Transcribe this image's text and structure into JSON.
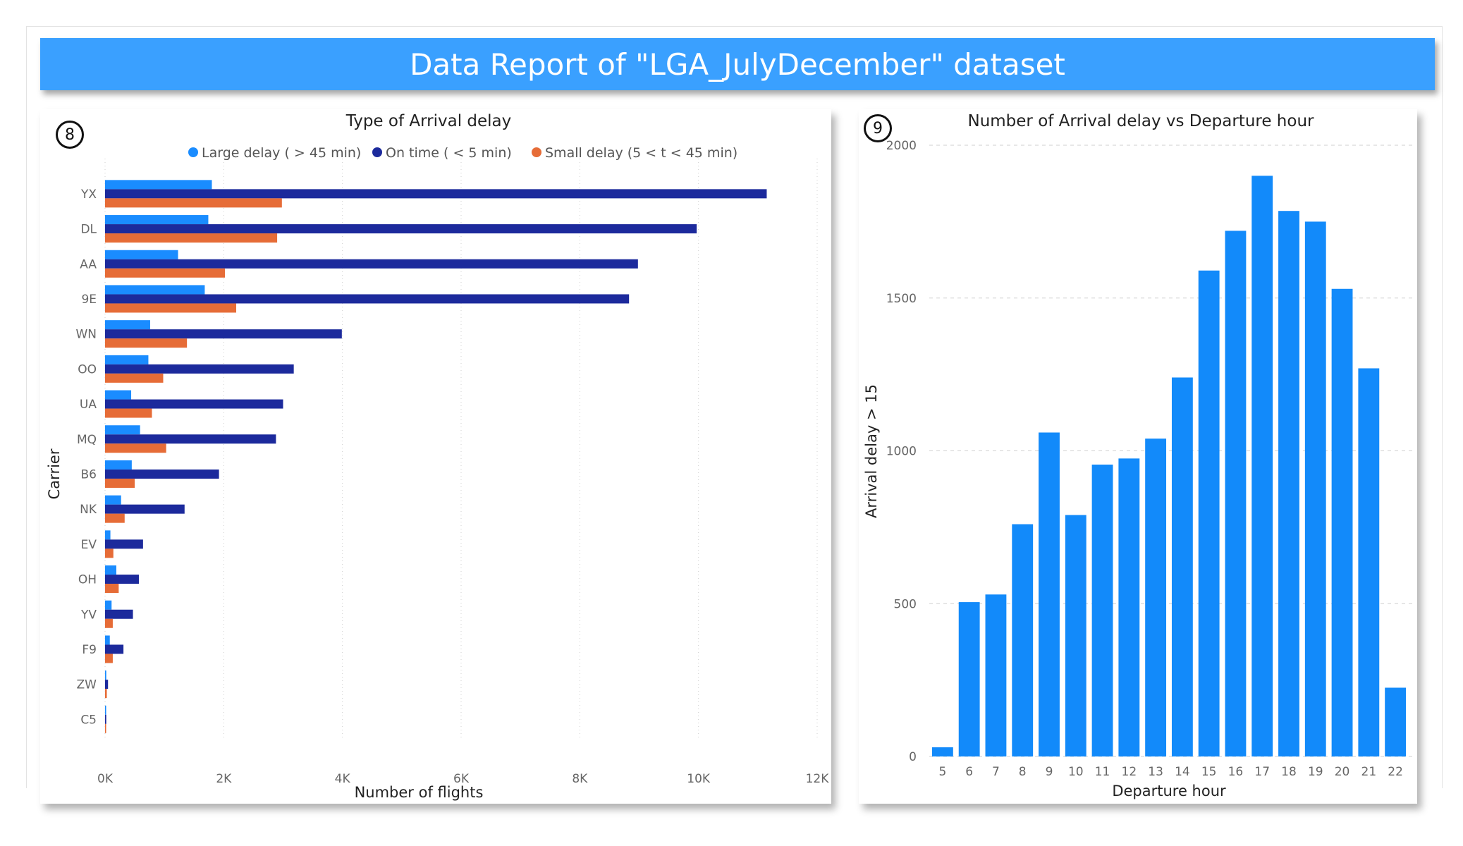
{
  "report": {
    "title": "Data Report of \"LGA_JulyDecember\" dataset"
  },
  "colors": {
    "banner": "#3aa0ff",
    "large_delay": "#1a8cff",
    "on_time": "#1c2a9c",
    "small_delay": "#e66c37",
    "bar": "#128afa"
  },
  "chart_data": [
    {
      "id": "8",
      "type": "bar",
      "orientation": "horizontal",
      "title": "Type of Arrival delay",
      "xlabel": "Number of flights",
      "ylabel": "Carrier",
      "xlim": [
        0,
        12000
      ],
      "xticks": [
        "0K",
        "2K",
        "4K",
        "6K",
        "8K",
        "10K",
        "12K"
      ],
      "legend": "top",
      "grid": "vertical dotted",
      "categories": [
        "YX",
        "DL",
        "AA",
        "9E",
        "WN",
        "OO",
        "UA",
        "MQ",
        "B6",
        "NK",
        "EV",
        "OH",
        "YV",
        "F9",
        "ZW",
        "C5"
      ],
      "series": [
        {
          "name": "Large delay ( > 45 min)",
          "color": "#1a8cff",
          "values": [
            1800,
            1740,
            1230,
            1680,
            760,
            730,
            440,
            590,
            450,
            270,
            90,
            190,
            110,
            80,
            20,
            10
          ]
        },
        {
          "name": "On time ( < 5 min)",
          "color": "#1c2a9c",
          "values": [
            11150,
            9970,
            8980,
            8830,
            3990,
            3180,
            3000,
            2880,
            1920,
            1340,
            640,
            570,
            470,
            310,
            50,
            20
          ]
        },
        {
          "name": "Small delay (5 < t < 45 min)",
          "color": "#e66c37",
          "values": [
            2980,
            2900,
            2020,
            2210,
            1380,
            980,
            790,
            1030,
            500,
            330,
            140,
            230,
            130,
            130,
            30,
            15
          ]
        }
      ]
    },
    {
      "id": "9",
      "type": "bar",
      "orientation": "vertical",
      "title": "Number of Arrival delay vs Departure hour",
      "xlabel": "Departure hour",
      "ylabel": "Arrival delay > 15",
      "ylim": [
        0,
        2000
      ],
      "yticks": [
        "0",
        "500",
        "1000",
        "1500",
        "2000"
      ],
      "grid": "horizontal dashed",
      "color": "#128afa",
      "categories": [
        "5",
        "6",
        "7",
        "8",
        "9",
        "10",
        "11",
        "12",
        "13",
        "14",
        "15",
        "16",
        "17",
        "18",
        "19",
        "20",
        "21",
        "22"
      ],
      "values": [
        30,
        505,
        530,
        760,
        1060,
        790,
        955,
        975,
        1040,
        1240,
        1590,
        1720,
        1900,
        1785,
        1750,
        1530,
        1270,
        225
      ]
    }
  ]
}
